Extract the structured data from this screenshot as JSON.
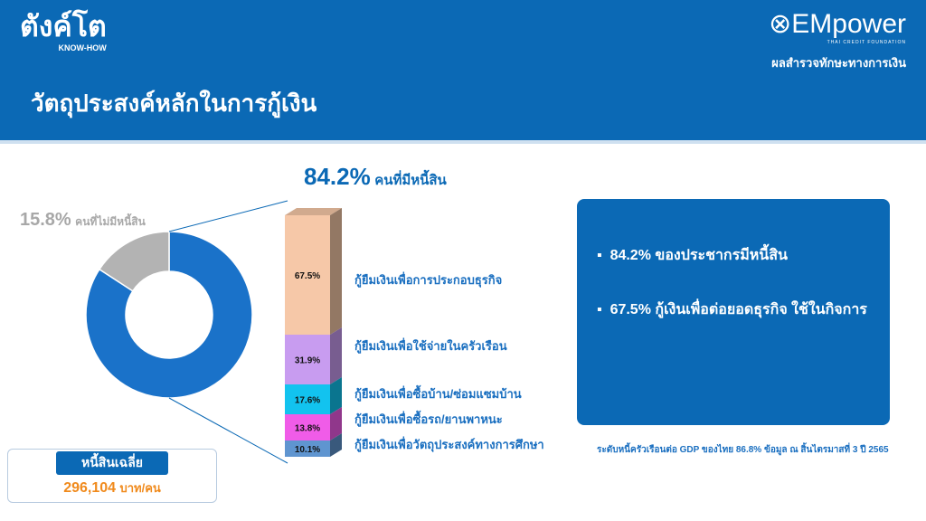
{
  "header": {
    "logo": "ตังค์โต",
    "logo_sub": "KNOW-HOW",
    "brand": "EMpower",
    "brand_sub": "THAI CREDIT FOUNDATION",
    "survey": "ผลสำรวจทักษะทางการเงิน",
    "title": "วัตถุประสงค์หลักในการกู้เงิน"
  },
  "chart_data": [
    {
      "type": "pie",
      "style": "donut",
      "slices": [
        {
          "label": "คนที่มีหนี้สิน",
          "value": 84.2,
          "color": "#1a72c9"
        },
        {
          "label": "คนที่ไม่มีหนี้สิน",
          "value": 15.8,
          "color": "#b3b3b3"
        }
      ],
      "labels": {
        "with_debt_pct": "84.2%",
        "with_debt": "คนที่มีหนี้สิน",
        "no_debt_pct": "15.8%",
        "no_debt": "คนที่ไม่มีหนี้สิน"
      }
    },
    {
      "type": "bar",
      "style": "stacked-3d",
      "categories": [
        "กู้ยืมเงินเพื่อการประกอบธุรกิจ",
        "กู้ยืมเงินเพื่อใช้จ่ายในครัวเรือน",
        "กู้ยืมเงินเพื่อซื้อบ้าน/ซ่อมแซมบ้าน",
        "กู้ยืมเงินเพื่อซื้อรถ/ยานพาหนะ",
        "กู้ยืมเงินเพื่อวัตถุประสงค์ทางการศึกษา"
      ],
      "values": [
        67.5,
        31.9,
        17.6,
        13.8,
        10.1
      ],
      "value_labels": [
        "67.5%",
        "31.9%",
        "17.6%",
        "13.8%",
        "10.1%"
      ],
      "colors": [
        "#f6c8a8",
        "#c89cf0",
        "#12c3ef",
        "#f05ce8",
        "#5f95d0"
      ]
    }
  ],
  "summary": {
    "bullets": [
      "84.2% ของประชากรมีหนี้สิน",
      "67.5% กู้เงินเพื่อต่อยอดธุรกิจ ใช้ในกิจการ"
    ],
    "footnote": "ระดับหนี้ครัวเรือนต่อ GDP ของไทย 86.8% ข้อมูล ณ สิ้นไตรมาสที่ 3 ปี 2565"
  },
  "avg_debt": {
    "label": "หนี้สินเฉลี่ย",
    "value": "296,104",
    "unit": "บาท/คน"
  }
}
